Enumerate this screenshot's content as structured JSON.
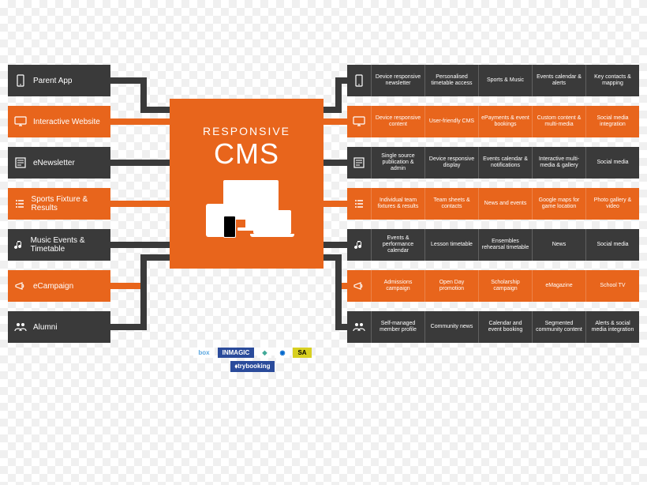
{
  "colors": {
    "dark": "#3a3a3a",
    "orange": "#e8651c",
    "white": "#ffffff"
  },
  "center": {
    "title_top": "RESPONSIVE",
    "title_main": "CMS"
  },
  "left_items": [
    {
      "label": "Parent App",
      "icon": "phone",
      "color": "dark"
    },
    {
      "label": "Interactive Website",
      "icon": "monitor",
      "color": "orange"
    },
    {
      "label": "eNewsletter",
      "icon": "news",
      "color": "dark"
    },
    {
      "label": "Sports Fixture & Results",
      "icon": "list",
      "color": "orange"
    },
    {
      "label": "Music Events & Timetable",
      "icon": "music",
      "color": "dark"
    },
    {
      "label": "eCampaign",
      "icon": "megaphone",
      "color": "orange"
    },
    {
      "label": "Alumni",
      "icon": "people",
      "color": "dark"
    }
  ],
  "right_rows": [
    {
      "icon": "phone",
      "color": "dark",
      "cells": [
        "Device responsive newsletter",
        "Personalised timetable access",
        "Sports & Music",
        "Events calendar & alerts",
        "Key contacts & mapping"
      ]
    },
    {
      "icon": "monitor",
      "color": "orange",
      "cells": [
        "Device responsive content",
        "User-friendly CMS",
        "ePayments & event bookings",
        "Custom content & multi-media",
        "Social media integration"
      ]
    },
    {
      "icon": "news",
      "color": "dark",
      "cells": [
        "Single source publication & admin",
        "Device responsive display",
        "Events calendar & notifications",
        "Interactive multi-media & gallery",
        "Social media"
      ]
    },
    {
      "icon": "list",
      "color": "orange",
      "cells": [
        "Individual team fixtures & results",
        "Team sheets & contacts",
        "News and events",
        "Google maps for game location",
        "Photo gallery & video"
      ]
    },
    {
      "icon": "music",
      "color": "dark",
      "cells": [
        "Events & performance calendar",
        "Lesson timetable",
        "Ensembles rehearsal timetable",
        "News",
        "Social media"
      ]
    },
    {
      "icon": "megaphone",
      "color": "orange",
      "cells": [
        "Admissions campaign",
        "Open Day promotion",
        "Scholarship campaign",
        "eMagazine",
        "School TV"
      ]
    },
    {
      "icon": "people",
      "color": "dark",
      "cells": [
        "Self-managed member profile",
        "Community news",
        "Calendar and event booking",
        "Segmented community content",
        "Alerts & social media integration"
      ]
    }
  ],
  "logos": [
    {
      "text": "box",
      "bg": "#ffffff",
      "fg": "#5ba7e0"
    },
    {
      "text": "INMAGIC",
      "bg": "#2a4b9b",
      "fg": "#ffffff"
    },
    {
      "text": "◆",
      "bg": "#ffffff",
      "fg": "#4a9"
    },
    {
      "text": "◉",
      "bg": "#ffffff",
      "fg": "#06c"
    },
    {
      "text": "SA",
      "bg": "#d8d020",
      "fg": "#000"
    },
    {
      "text": "⬧trybooking",
      "bg": "#2a4b9b",
      "fg": "#ffffff"
    }
  ]
}
